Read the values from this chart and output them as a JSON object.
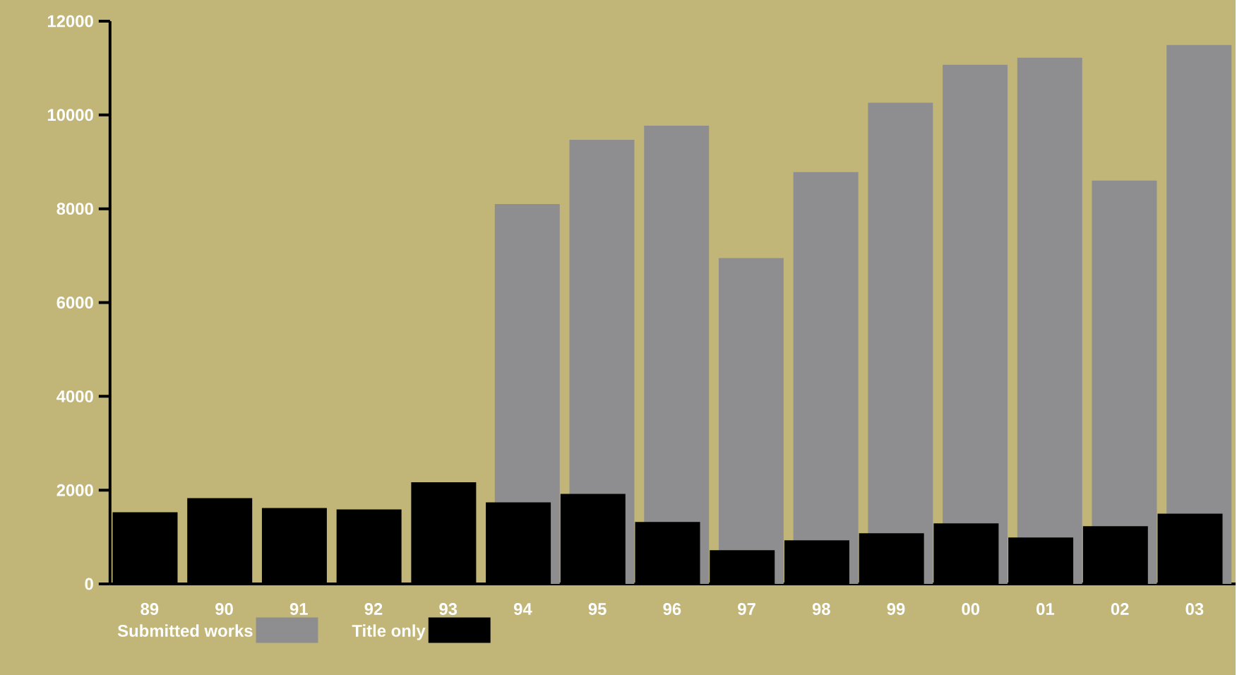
{
  "chart_data": {
    "type": "bar",
    "categories": [
      "89",
      "90",
      "91",
      "92",
      "93",
      "94",
      "95",
      "96",
      "97",
      "98",
      "99",
      "00",
      "01",
      "02",
      "03"
    ],
    "series": [
      {
        "name": "Submitted works",
        "color": "#8e8e90",
        "values": [
          null,
          null,
          null,
          null,
          null,
          8100,
          9470,
          9770,
          6950,
          8780,
          10260,
          11070,
          11220,
          8600,
          11490
        ]
      },
      {
        "name": "Title only",
        "color": "#000000",
        "values": [
          1530,
          1830,
          1620,
          1590,
          2170,
          1740,
          1920,
          1320,
          720,
          930,
          1080,
          1290,
          990,
          1230,
          1500
        ]
      }
    ],
    "ylim": [
      0,
      12000
    ],
    "yticks": [
      0,
      2000,
      4000,
      6000,
      8000,
      10000,
      12000
    ],
    "legend": "bottom"
  }
}
